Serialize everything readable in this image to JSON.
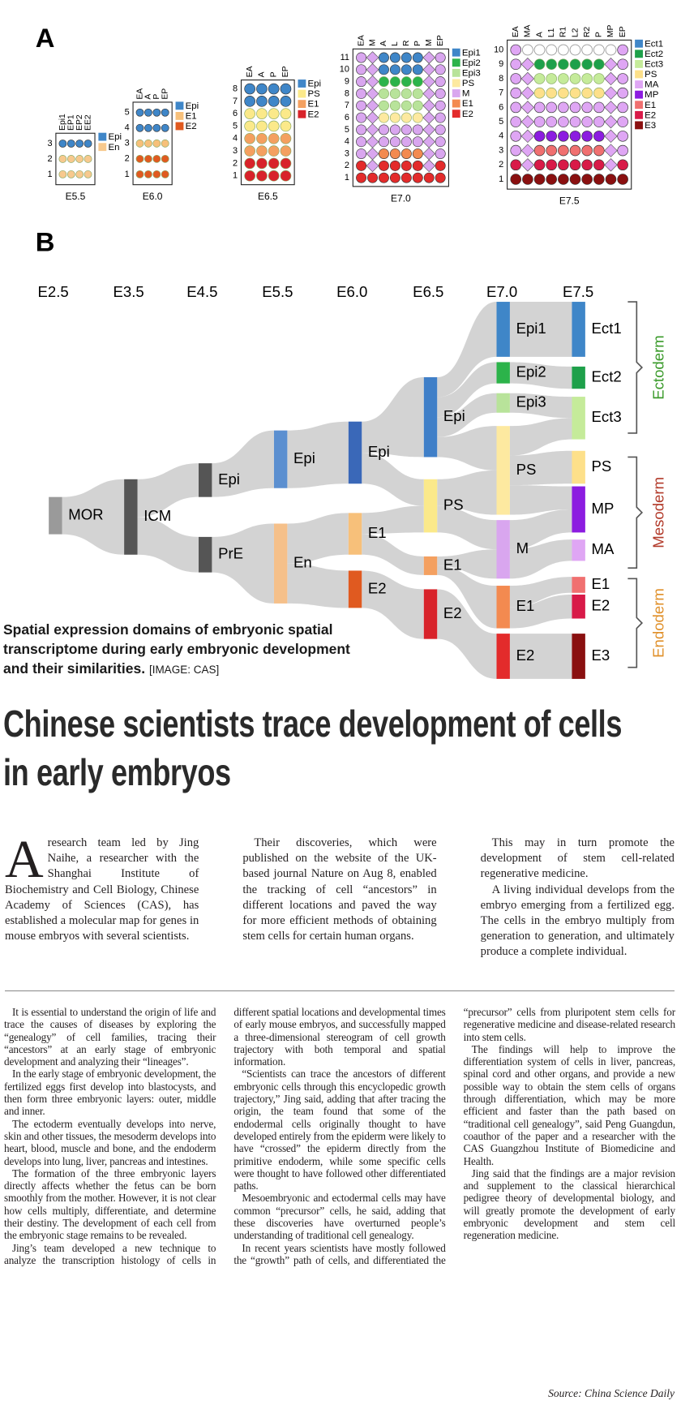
{
  "figure": {
    "panel_a": {
      "label": "A",
      "stages": [
        {
          "name": "E5.5",
          "columns": [
            "Epi1",
            "EP1",
            "EP2",
            "EE2"
          ],
          "rows": [
            "1",
            "2",
            "3"
          ],
          "legend": [
            {
              "name": "Epi",
              "color": "#3f86c8"
            },
            {
              "name": "En",
              "color": "#f7c98e"
            }
          ]
        },
        {
          "name": "E6.0",
          "columns": [
            "EA",
            "A",
            "P",
            "EP"
          ],
          "rows": [
            "1",
            "2",
            "3",
            "4",
            "5"
          ],
          "legend": [
            {
              "name": "Epi",
              "color": "#3f86c8"
            },
            {
              "name": "E1",
              "color": "#f7c07a"
            },
            {
              "name": "E2",
              "color": "#e05a20"
            }
          ]
        },
        {
          "name": "E6.5",
          "columns": [
            "EA",
            "A",
            "P",
            "EP"
          ],
          "rows": [
            "1",
            "2",
            "3",
            "4",
            "5",
            "6",
            "7",
            "8"
          ],
          "legend": [
            {
              "name": "Epi",
              "color": "#3f86c8"
            },
            {
              "name": "PS",
              "color": "#fbe98a"
            },
            {
              "name": "E1",
              "color": "#f4a060"
            },
            {
              "name": "E2",
              "color": "#d8232a"
            }
          ]
        },
        {
          "name": "E7.0",
          "columns": [
            "EA",
            "M",
            "A",
            "L",
            "R",
            "P",
            "M",
            "EP"
          ],
          "rows": [
            "1",
            "2",
            "3",
            "4",
            "5",
            "6",
            "7",
            "8",
            "9",
            "10",
            "11"
          ],
          "legend": [
            {
              "name": "Epi1",
              "color": "#3f86c8"
            },
            {
              "name": "Epi2",
              "color": "#2cb34a"
            },
            {
              "name": "Epi3",
              "color": "#b8e39a"
            },
            {
              "name": "PS",
              "color": "#fde9a0"
            },
            {
              "name": "M",
              "color": "#d9a6ef"
            },
            {
              "name": "E1",
              "color": "#f38a50"
            },
            {
              "name": "E2",
              "color": "#e32b2b"
            }
          ]
        },
        {
          "name": "E7.5",
          "columns": [
            "EA",
            "MA",
            "A",
            "L1",
            "R1",
            "L2",
            "R2",
            "P",
            "MP",
            "EP"
          ],
          "rows": [
            "1",
            "2",
            "3",
            "4",
            "5",
            "6",
            "7",
            "8",
            "9",
            "10"
          ],
          "legend": [
            {
              "name": "Ect1",
              "color": "#3f86c8"
            },
            {
              "name": "Ect2",
              "color": "#1ea04a"
            },
            {
              "name": "Ect3",
              "color": "#c5eb9a"
            },
            {
              "name": "PS",
              "color": "#fde08a"
            },
            {
              "name": "MA",
              "color": "#dfa6f4"
            },
            {
              "name": "MP",
              "color": "#8c1ce0"
            },
            {
              "name": "E1",
              "color": "#f07070"
            },
            {
              "name": "E2",
              "color": "#d81a48"
            },
            {
              "name": "E3",
              "color": "#8a1010"
            }
          ]
        }
      ]
    },
    "panel_b": {
      "label": "B",
      "stages": [
        "E2.5",
        "E3.5",
        "E4.5",
        "E5.5",
        "E6.0",
        "E6.5",
        "E7.0",
        "E7.5"
      ],
      "nodes": [
        {
          "label": "MOR",
          "color": "#9a9a9a"
        },
        {
          "label": "ICM",
          "color": "#555555"
        },
        {
          "label": "Epi",
          "color": "#555555"
        },
        {
          "label": "PrE",
          "color": "#555555"
        },
        {
          "label": "Epi",
          "color": "#5b8fd0"
        },
        {
          "label": "En",
          "color": "#f5c08a"
        },
        {
          "label": "Epi",
          "color": "#3a68b8"
        },
        {
          "label": "E1",
          "color": "#f7c07a"
        },
        {
          "label": "E2",
          "color": "#e05a20"
        },
        {
          "label": "Epi",
          "color": "#3f7fc8"
        },
        {
          "label": "PS",
          "color": "#fbe98a"
        },
        {
          "label": "E1",
          "color": "#f4a060"
        },
        {
          "label": "E2",
          "color": "#d8232a"
        },
        {
          "label": "Epi1",
          "color": "#3f86c8"
        },
        {
          "label": "Epi2",
          "color": "#2cb34a"
        },
        {
          "label": "Epi3",
          "color": "#b8e39a"
        },
        {
          "label": "PS",
          "color": "#fde9a0"
        },
        {
          "label": "M",
          "color": "#d9a6ef"
        },
        {
          "label": "E1",
          "color": "#f38a50"
        },
        {
          "label": "E2",
          "color": "#e32b2b"
        },
        {
          "label": "Ect1",
          "color": "#3f86c8"
        },
        {
          "label": "Ect2",
          "color": "#1ea04a"
        },
        {
          "label": "Ect3",
          "color": "#c5eb9a"
        },
        {
          "label": "PS",
          "color": "#fde08a"
        },
        {
          "label": "MP",
          "color": "#8c1ce0"
        },
        {
          "label": "MA",
          "color": "#dfa6f4"
        },
        {
          "label": "E1",
          "color": "#f07070"
        },
        {
          "label": "E2",
          "color": "#d81a48"
        },
        {
          "label": "E3",
          "color": "#8a1010"
        }
      ],
      "groups": [
        {
          "name": "Ectoderm",
          "color": "#3a9a2a"
        },
        {
          "name": "Mesoderm",
          "color": "#b23a2a"
        },
        {
          "name": "Endoderm",
          "color": "#e0902a"
        }
      ]
    }
  },
  "caption": {
    "text": "Spatial expression domains of embryonic spatial transcriptome during early embryonic development and their similarities.",
    "credit": "[IMAGE: CAS]"
  },
  "headline": "Chinese scientists trace development of cells in early embryos",
  "intro": {
    "dropcap": "A",
    "paragraphs": [
      "research team led by Jing Naihe, a researcher with the Shanghai Institute of Biochemistry and Cell Biology, Chinese Academy of Sciences (CAS), has established a molecular map for genes in mouse embryos with several scientists.",
      "Their discoveries, which were published on the website of the UK-based journal Nature on Aug 8, enabled the tracking of cell “ancestors” in different locations and paved the way for more efficient methods of obtaining stem cells for certain human organs.",
      "This may in turn promote the development of stem cell-related regenerative medicine.",
      "A living individual develops from the embryo emerging from a fertilized egg. The cells in the embryo multiply from generation to generation, and ultimately produce a complete individual."
    ]
  },
  "body": {
    "paragraphs": [
      "It is essential to understand the origin of life and trace the causes of diseases by exploring the “genealogy” of cell families, tracing their “ancestors” at an early stage of embryonic development and analyzing their “lineages”.",
      "In the early stage of embryonic development, the fertilized eggs first develop into blastocysts, and then form three embryonic layers: outer, middle and inner.",
      "The ectoderm eventually develops into nerve, skin and other tissues, the mesoderm develops into heart, blood, muscle and bone, and the endoderm develops into lung, liver, pancreas and intestines.",
      "The formation of the three embryonic layers directly affects whether the fetus can be born smoothly from the mother. However, it is not clear how cells multiply, differentiate, and determine their destiny. The development of each cell from the embryonic stage remains to be revealed.",
      "Jing’s team developed a new technique to analyze the transcription histology of cells in different spatial locations and developmental times of early mouse embryos, and successfully mapped a three-dimensional stereogram of cell growth trajectory with both temporal and spatial information.",
      "“Scientists can trace the ancestors of different embryonic cells through this encyclopedic growth trajectory,” Jing said, adding that after tracing the origin, the team found that some of the endodermal cells originally thought to have developed entirely from the epiderm were likely to have “crossed” the epiderm directly from the primitive endoderm, while some specific cells were thought to have followed other differentiated paths.",
      "Mesoembryonic and ectodermal cells may have common “precursor” cells, he said, adding that these discoveries have overturned people’s understanding of traditional cell genealogy.",
      "In recent years scientists have mostly followed the “growth” path of cells, and differentiated the “precursor” cells from pluripotent stem cells for regenerative medicine and disease-related research into stem cells.",
      "The findings will help to improve the differentiation system of cells in liver, pancreas, spinal cord and other organs, and provide a new possible way to obtain the stem cells of organs through differentiation, which may be more efficient and faster than the path based on “traditional cell genealogy”, said Peng Guangdun, coauthor of the paper and a researcher with the CAS Guangzhou Institute of Biomedicine and Health.",
      "Jing said that the findings are a major revision and supplement to the classical hierarchical pedigree theory of developmental biology, and will greatly promote the development of early embryonic development and stem cell regeneration medicine."
    ]
  },
  "source": "Source: China Science Daily"
}
